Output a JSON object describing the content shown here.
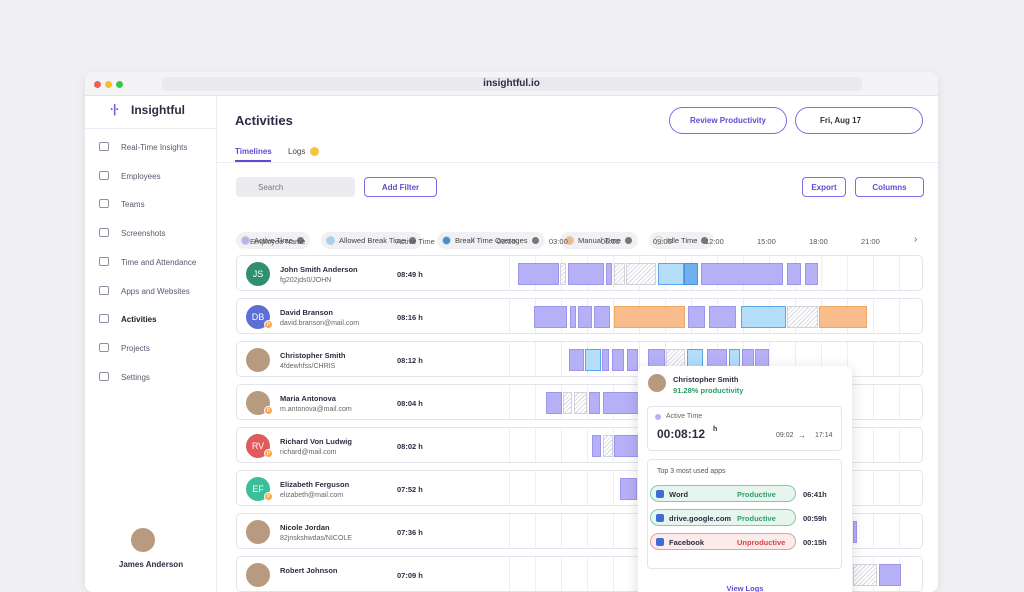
{
  "browser": {
    "url": "insightful.io"
  },
  "sidebar": {
    "logo": "Insightful",
    "nav": [
      "Real-Time Insights",
      "Employees",
      "Teams",
      "Screenshots",
      "Time and Attendance",
      "Apps and Websites",
      "Activities",
      "Projects",
      "Settings"
    ],
    "user": "James Anderson"
  },
  "header": {
    "title": "Activities",
    "review_button": "Review Productivity",
    "date": "Fri, Aug 17",
    "tabs": [
      "Timelines",
      "Logs"
    ]
  },
  "toolbar": {
    "search": "Search",
    "add_filter": "Add Filter",
    "export": "Export",
    "columns": "Columns"
  },
  "legend": [
    "Active Time",
    "Allowed Break Time",
    "Break Time Overages",
    "Manual Time",
    "Idle Time"
  ],
  "table": {
    "columns": {
      "employee": "Employee Name",
      "active": "Active Time"
    },
    "hours": [
      "00:00",
      "03:00",
      "06:00",
      "09:00",
      "12:00",
      "15:00",
      "18:00",
      "21:00"
    ],
    "rows": [
      {
        "initials": "JS",
        "name": "John Smith Anderson",
        "sub": "fg202jds0/JOHN",
        "active": "08:49 h"
      },
      {
        "initials": "DB",
        "badge": "P",
        "name": "David Branson",
        "sub": "david.branson@mail.com",
        "active": "08:16 h"
      },
      {
        "name": "Christopher Smith",
        "sub": "4fdewhfss/CHRIS",
        "active": "08:12 h"
      },
      {
        "badge": "P",
        "name": "Maria Antonova",
        "sub": "m.antonova@mail.com",
        "active": "08:04 h"
      },
      {
        "initials": "RV",
        "badge": "P",
        "name": "Richard Von Ludwig",
        "sub": "richard@mail.com",
        "active": "08:02 h"
      },
      {
        "initials": "EF",
        "badge": "P",
        "name": "Elizabeth Ferguson",
        "sub": "elizabeth@mail.com",
        "active": "07:52 h"
      },
      {
        "name": "Nicole Jordan",
        "sub": "82jnskshwdas/NICOLE",
        "active": "07:36 h"
      },
      {
        "name": "Robert Johnson",
        "sub": "",
        "active": "07:09 h"
      }
    ]
  },
  "popup": {
    "name": "Christopher Smith",
    "productivity": "91.28% productivity",
    "label": "Active Time",
    "duration": "00:08:12",
    "unit": "h",
    "start": "09:02",
    "end": "17:14",
    "apps_title": "Top 3 most used apps",
    "apps": [
      {
        "name": "Word",
        "status": "Productive",
        "time": "06:41h"
      },
      {
        "name": "drive.google.com",
        "status": "Productive",
        "time": "00:59h"
      },
      {
        "name": "Facebook",
        "status": "Unproductive",
        "time": "00:15h"
      }
    ],
    "link": "View Logs"
  }
}
